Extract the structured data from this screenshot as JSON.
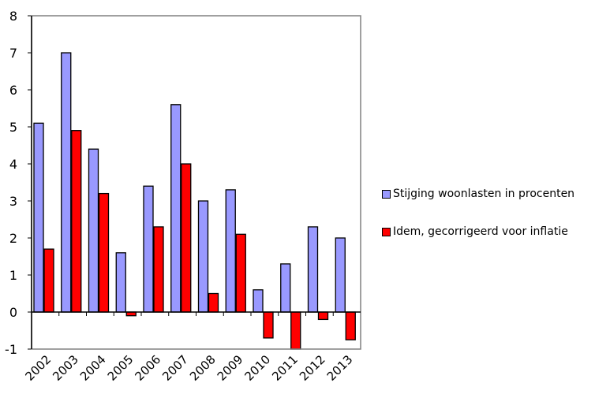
{
  "chart_data": {
    "type": "bar",
    "categories": [
      "2002",
      "2003",
      "2004",
      "2005",
      "2006",
      "2007",
      "2008",
      "2009",
      "2010",
      "2011",
      "2012",
      "2013"
    ],
    "series": [
      {
        "name": "Stijging woonlasten in procenten",
        "color": "#9999ff",
        "values": [
          5.1,
          7.0,
          4.4,
          1.6,
          3.4,
          5.6,
          3.0,
          3.3,
          0.6,
          1.3,
          2.3,
          2.0
        ]
      },
      {
        "name": "Idem, gecorrigeerd voor inflatie",
        "color": "#ff0000",
        "values": [
          1.7,
          4.9,
          3.2,
          -0.1,
          2.3,
          4.0,
          0.5,
          2.1,
          -0.7,
          -1.0,
          -0.2,
          -0.75
        ]
      }
    ],
    "yticks": [
      "-1",
      "0",
      "1",
      "2",
      "3",
      "4",
      "5",
      "6",
      "7",
      "8"
    ],
    "ylim": [
      -1,
      8
    ],
    "grid": false,
    "legend_position": "right"
  }
}
